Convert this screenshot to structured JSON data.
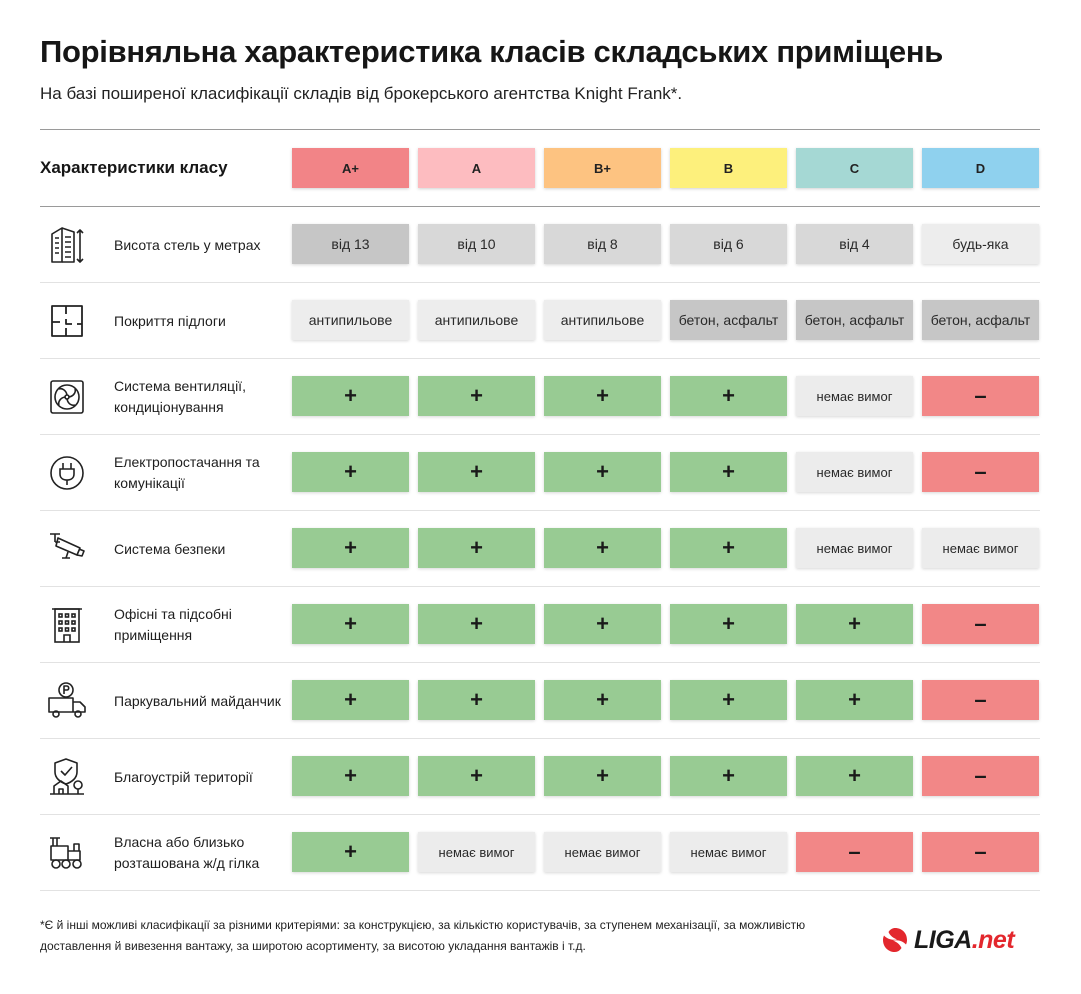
{
  "header": {
    "title": "Порівняльна характеристика класів складських приміщень",
    "subtitle": "На базі поширеної класифікації складів від брокерського агентства Knight Frank*."
  },
  "table": {
    "head_label": "Характеристики класу",
    "classes": [
      {
        "label": "A+",
        "color": "#f28487"
      },
      {
        "label": "A",
        "color": "#fdbcc0"
      },
      {
        "label": "B+",
        "color": "#fdc381"
      },
      {
        "label": "B",
        "color": "#fdf07c"
      },
      {
        "label": "C",
        "color": "#a5d8d4"
      },
      {
        "label": "D",
        "color": "#8fd1ee"
      }
    ],
    "rows": [
      {
        "label": "Висота стель у метрах",
        "icon": "building-height-icon",
        "cells": [
          {
            "text": "від 13",
            "kind": "dark"
          },
          {
            "text": "від 10",
            "kind": "mid"
          },
          {
            "text": "від 8",
            "kind": "mid"
          },
          {
            "text": "від 6",
            "kind": "mid"
          },
          {
            "text": "від 4",
            "kind": "mid"
          },
          {
            "text": "будь-яка",
            "kind": "light"
          }
        ]
      },
      {
        "label": "Покриття підлоги",
        "icon": "floor-plan-icon",
        "cells": [
          {
            "text": "антипильове",
            "kind": "light"
          },
          {
            "text": "антипильове",
            "kind": "light"
          },
          {
            "text": "антипильове",
            "kind": "light"
          },
          {
            "text": "бетон, асфальт",
            "kind": "dark"
          },
          {
            "text": "бетон, асфальт",
            "kind": "dark"
          },
          {
            "text": "бетон, асфальт",
            "kind": "dark"
          }
        ]
      },
      {
        "label": "Система вентиляції, кондиціонування",
        "icon": "ventilation-fan-icon",
        "cells": [
          {
            "text": "+",
            "kind": "yes"
          },
          {
            "text": "+",
            "kind": "yes"
          },
          {
            "text": "+",
            "kind": "yes"
          },
          {
            "text": "+",
            "kind": "yes"
          },
          {
            "text": "немає вимог",
            "kind": "nr"
          },
          {
            "text": "–",
            "kind": "no"
          }
        ]
      },
      {
        "label": "Електропостачання та комунікації",
        "icon": "power-plug-icon",
        "cells": [
          {
            "text": "+",
            "kind": "yes"
          },
          {
            "text": "+",
            "kind": "yes"
          },
          {
            "text": "+",
            "kind": "yes"
          },
          {
            "text": "+",
            "kind": "yes"
          },
          {
            "text": "немає вимог",
            "kind": "nr"
          },
          {
            "text": "–",
            "kind": "no"
          }
        ]
      },
      {
        "label": "Система безпеки",
        "icon": "security-camera-icon",
        "cells": [
          {
            "text": "+",
            "kind": "yes"
          },
          {
            "text": "+",
            "kind": "yes"
          },
          {
            "text": "+",
            "kind": "yes"
          },
          {
            "text": "+",
            "kind": "yes"
          },
          {
            "text": "немає вимог",
            "kind": "nr"
          },
          {
            "text": "немає вимог",
            "kind": "nr"
          }
        ]
      },
      {
        "label": "Офісні та підсобні приміщення",
        "icon": "office-building-icon",
        "cells": [
          {
            "text": "+",
            "kind": "yes"
          },
          {
            "text": "+",
            "kind": "yes"
          },
          {
            "text": "+",
            "kind": "yes"
          },
          {
            "text": "+",
            "kind": "yes"
          },
          {
            "text": "+",
            "kind": "yes"
          },
          {
            "text": "–",
            "kind": "no"
          }
        ]
      },
      {
        "label": "Паркувальний майданчик",
        "icon": "parking-truck-icon",
        "cells": [
          {
            "text": "+",
            "kind": "yes"
          },
          {
            "text": "+",
            "kind": "yes"
          },
          {
            "text": "+",
            "kind": "yes"
          },
          {
            "text": "+",
            "kind": "yes"
          },
          {
            "text": "+",
            "kind": "yes"
          },
          {
            "text": "–",
            "kind": "no"
          }
        ]
      },
      {
        "label": "Благоустрій території",
        "icon": "landscaping-icon",
        "cells": [
          {
            "text": "+",
            "kind": "yes"
          },
          {
            "text": "+",
            "kind": "yes"
          },
          {
            "text": "+",
            "kind": "yes"
          },
          {
            "text": "+",
            "kind": "yes"
          },
          {
            "text": "+",
            "kind": "yes"
          },
          {
            "text": "–",
            "kind": "no"
          }
        ]
      },
      {
        "label": "Власна або близько розташована ж/д гілка",
        "icon": "train-icon",
        "cells": [
          {
            "text": "+",
            "kind": "yes"
          },
          {
            "text": "немає вимог",
            "kind": "nr"
          },
          {
            "text": "немає вимог",
            "kind": "nr"
          },
          {
            "text": "немає вимог",
            "kind": "nr"
          },
          {
            "text": "–",
            "kind": "no"
          },
          {
            "text": "–",
            "kind": "no"
          }
        ]
      }
    ]
  },
  "footnote": "*Є й інші можливі класифікації за різними критеріями: за конструкцією, за кількістю користувачів, за ступенем механізації, за можливістю доставлення й вивезення вантажу, за широтою асортименту, за висотою укладання вантажів і т.д.",
  "logo": {
    "liga": "LIGA",
    "net": ".net",
    "brand_color": "#e3272d"
  }
}
